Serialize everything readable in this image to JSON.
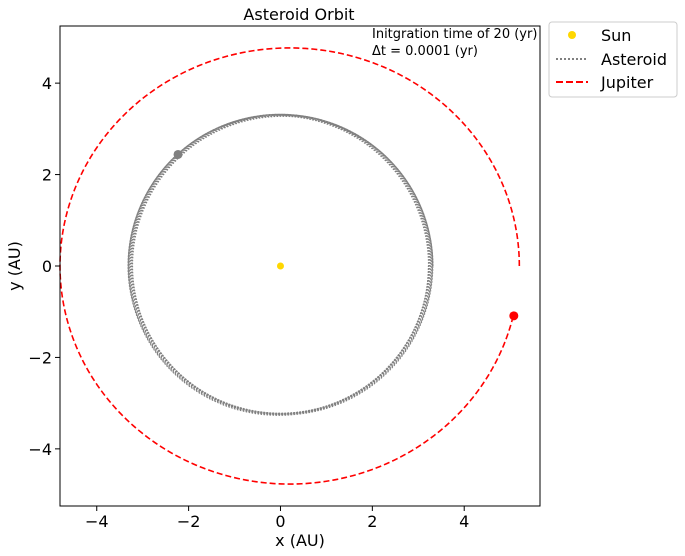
{
  "chart_data": {
    "type": "line",
    "title": "Asteroid Orbit",
    "xlabel": "x (AU)",
    "ylabel": "y (AU)",
    "xlim": [
      -4.8,
      5.65
    ],
    "ylim": [
      -5.25,
      5.25
    ],
    "xticks": [
      -4,
      -2,
      0,
      2,
      4
    ],
    "yticks": [
      -4,
      -2,
      0,
      2,
      4
    ],
    "xtick_labels": [
      "−4",
      "−2",
      "0",
      "2",
      "4"
    ],
    "ytick_labels": [
      "−4",
      "−2",
      "0",
      "2",
      "4"
    ],
    "grid": false,
    "legend_position": "outside-top-right",
    "annotation_lines": [
      "Initgration time of 20 (yr)",
      "Δt = 0.0001 (yr)"
    ],
    "series": [
      {
        "name": "Sun",
        "kind": "point",
        "color": "#ffd700",
        "x": [
          0.0
        ],
        "y": [
          0.0
        ]
      },
      {
        "name": "Asteroid",
        "kind": "orbit",
        "color": "#808080",
        "line_style": "dotted",
        "orbit": {
          "center_x": 0.0,
          "center_y": 0.0,
          "radius_min": 3.22,
          "radius_max": 3.32,
          "loops": 10,
          "start_deg": 0,
          "end_deg": 3600
        },
        "current_position": {
          "x": -2.23,
          "y": 2.44
        }
      },
      {
        "name": "Jupiter",
        "kind": "orbit",
        "color": "#ff0000",
        "line_style": "dashed",
        "orbit": {
          "center_x": 0.2,
          "center_y": 0.0,
          "semi_major_x": 5.0,
          "semi_minor_y": 4.77,
          "start_deg": 0,
          "end_deg": 347
        },
        "current_position": {
          "x": 5.08,
          "y": -1.09
        }
      }
    ]
  }
}
